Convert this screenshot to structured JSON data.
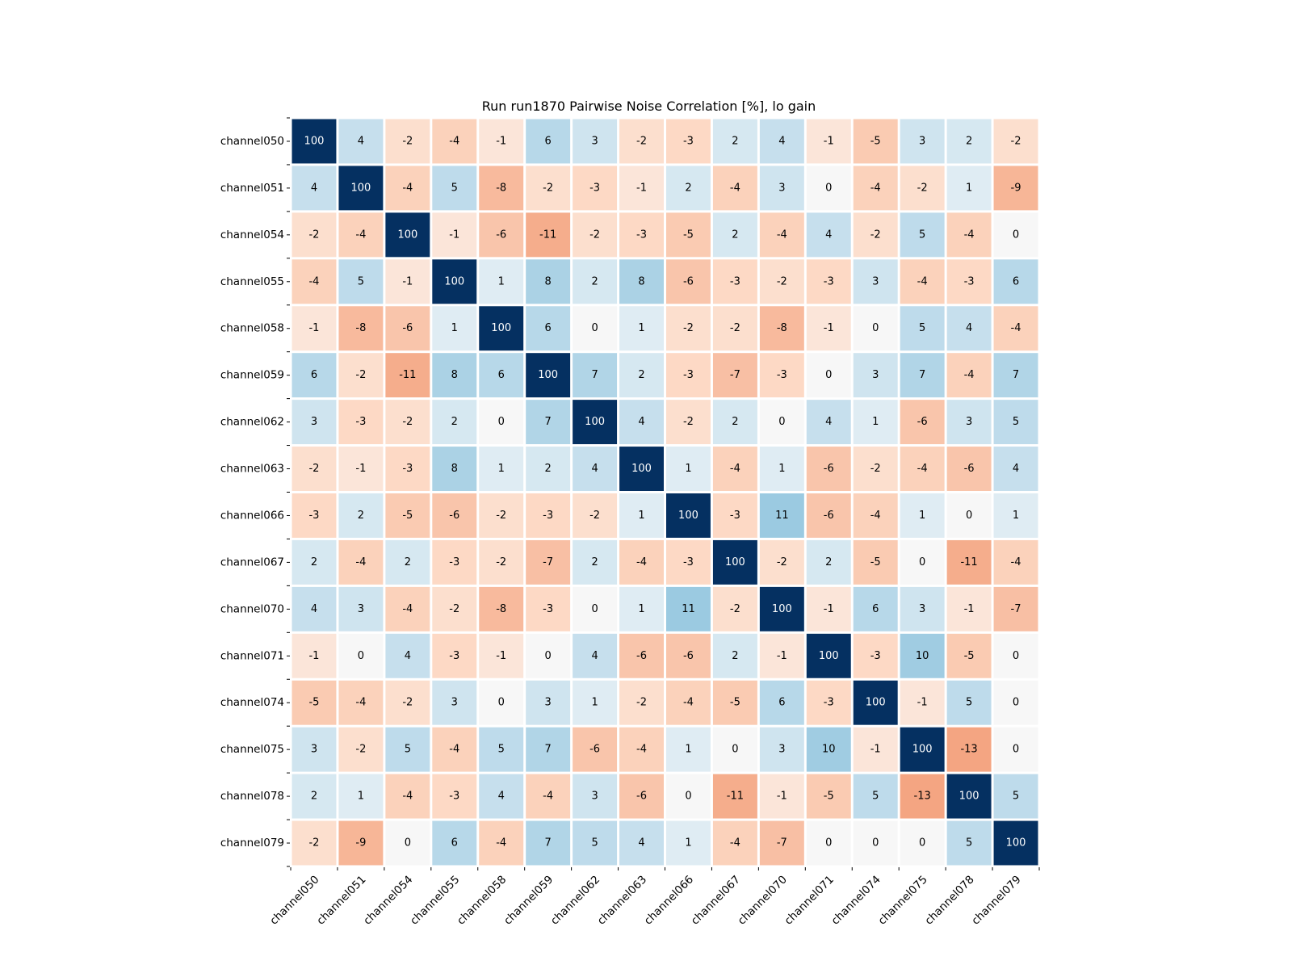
{
  "chart_data": {
    "type": "heatmap",
    "title": "Run run1870 Pairwise Noise Correlation [%], lo gain",
    "xlabel": "",
    "ylabel": "",
    "colormap": "RdBu (diverging, red = negative, blue = positive)",
    "color_range": [
      -100,
      100
    ],
    "colors": {
      "max_positive": "#053061",
      "neutral": "#f7f7f7",
      "max_negative": "#67001f",
      "cell_border": "#ffffff",
      "text_dark": "#000000",
      "text_light": "#ffffff"
    },
    "labels": [
      "channel050",
      "channel051",
      "channel054",
      "channel055",
      "channel058",
      "channel059",
      "channel062",
      "channel063",
      "channel066",
      "channel067",
      "channel070",
      "channel071",
      "channel074",
      "channel075",
      "channel078",
      "channel079"
    ],
    "matrix": [
      [
        100,
        4,
        -2,
        -4,
        -1,
        6,
        3,
        -2,
        -3,
        2,
        4,
        -1,
        -5,
        3,
        2,
        -2
      ],
      [
        4,
        100,
        -4,
        5,
        -8,
        -2,
        -3,
        -1,
        2,
        -4,
        3,
        0,
        -4,
        -2,
        1,
        -9
      ],
      [
        -2,
        -4,
        100,
        -1,
        -6,
        -11,
        -2,
        -3,
        -5,
        2,
        -4,
        4,
        -2,
        5,
        -4,
        0
      ],
      [
        -4,
        5,
        -1,
        100,
        1,
        8,
        2,
        8,
        -6,
        -3,
        -2,
        -3,
        3,
        -4,
        -3,
        6
      ],
      [
        -1,
        -8,
        -6,
        1,
        100,
        6,
        0,
        1,
        -2,
        -2,
        -8,
        -1,
        0,
        5,
        4,
        -4
      ],
      [
        6,
        -2,
        -11,
        8,
        6,
        100,
        7,
        2,
        -3,
        -7,
        -3,
        0,
        3,
        7,
        -4,
        7
      ],
      [
        3,
        -3,
        -2,
        2,
        0,
        7,
        100,
        4,
        -2,
        2,
        0,
        4,
        1,
        -6,
        3,
        5
      ],
      [
        -2,
        -1,
        -3,
        8,
        1,
        2,
        4,
        100,
        1,
        -4,
        1,
        -6,
        -2,
        -4,
        -6,
        4
      ],
      [
        -3,
        2,
        -5,
        -6,
        -2,
        -3,
        -2,
        1,
        100,
        -3,
        11,
        -6,
        -4,
        1,
        0,
        1
      ],
      [
        2,
        -4,
        2,
        -3,
        -2,
        -7,
        2,
        -4,
        -3,
        100,
        -2,
        2,
        -5,
        0,
        -11,
        -4
      ],
      [
        4,
        3,
        -4,
        -2,
        -8,
        -3,
        0,
        1,
        11,
        -2,
        100,
        -1,
        6,
        3,
        -1,
        -7
      ],
      [
        -1,
        0,
        4,
        -3,
        -1,
        0,
        4,
        -6,
        -6,
        2,
        -1,
        100,
        -3,
        10,
        -5,
        0
      ],
      [
        -5,
        -4,
        -2,
        3,
        0,
        3,
        1,
        -2,
        -4,
        -5,
        6,
        -3,
        100,
        -1,
        5,
        0
      ],
      [
        3,
        -2,
        5,
        -4,
        5,
        7,
        -6,
        -4,
        1,
        0,
        3,
        10,
        -1,
        100,
        -13,
        0
      ],
      [
        2,
        1,
        -4,
        -3,
        4,
        -4,
        3,
        -6,
        0,
        -11,
        -1,
        -5,
        5,
        -13,
        100,
        5
      ],
      [
        -2,
        -9,
        0,
        6,
        -4,
        7,
        5,
        4,
        1,
        -4,
        -7,
        0,
        0,
        0,
        5,
        100
      ]
    ]
  }
}
